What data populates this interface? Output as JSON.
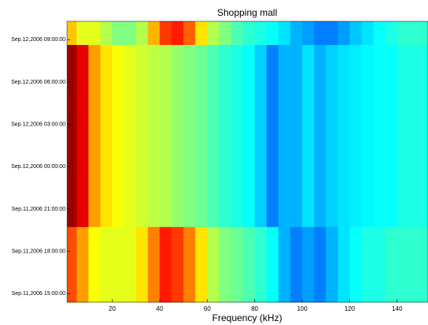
{
  "chart_data": {
    "type": "heatmap",
    "title": "Shopping mall",
    "x_label": "Frequency (kHz)",
    "xlim": [
      1,
      153
    ],
    "xticks": [
      20,
      40,
      60,
      80,
      100,
      120,
      140
    ],
    "ylim": [
      14.4,
      34.3
    ],
    "yticks": [
      {
        "value": 15,
        "label": "Sep.11,2006 15:00:00"
      },
      {
        "value": 18,
        "label": "Sep.11,2006 18:00:00"
      },
      {
        "value": 21,
        "label": "Sep.11,2006 21:00:00"
      },
      {
        "value": 24,
        "label": "Sep.12,2006 00:00:00"
      },
      {
        "value": 27,
        "label": "Sep.12,2006 03:00:00"
      },
      {
        "value": 30,
        "label": "Sep.12,2006 06:00:00"
      },
      {
        "value": 33,
        "label": "Sep.12,2006 09:00:00"
      }
    ],
    "x_edges": [
      1,
      5,
      10,
      15,
      20,
      25,
      30,
      35,
      40,
      45,
      50,
      55,
      60,
      65,
      70,
      75,
      80,
      85,
      90,
      95,
      100,
      105,
      110,
      115,
      120,
      125,
      130,
      135,
      140,
      145,
      150,
      153
    ],
    "y_edges": [
      14.4,
      19.75,
      32.65,
      34.3
    ],
    "colormap": "jet",
    "zlim": [
      0,
      1
    ],
    "z": [
      [
        0.8,
        0.72,
        0.62,
        0.6,
        0.6,
        0.6,
        0.65,
        0.75,
        0.85,
        0.82,
        0.75,
        0.65,
        0.55,
        0.5,
        0.48,
        0.45,
        0.42,
        0.38,
        0.3,
        0.25,
        0.28,
        0.25,
        0.3,
        0.35,
        0.38,
        0.4,
        0.4,
        0.42,
        0.42,
        0.42,
        0.42
      ],
      [
        0.97,
        0.9,
        0.72,
        0.65,
        0.62,
        0.6,
        0.58,
        0.56,
        0.55,
        0.52,
        0.5,
        0.48,
        0.45,
        0.42,
        0.4,
        0.38,
        0.33,
        0.25,
        0.3,
        0.3,
        0.35,
        0.3,
        0.33,
        0.35,
        0.36,
        0.37,
        0.38,
        0.38,
        0.4,
        0.4,
        0.4
      ],
      [
        0.68,
        0.6,
        0.6,
        0.55,
        0.5,
        0.5,
        0.55,
        0.7,
        0.82,
        0.85,
        0.78,
        0.65,
        0.55,
        0.5,
        0.45,
        0.42,
        0.4,
        0.38,
        0.35,
        0.3,
        0.28,
        0.25,
        0.25,
        0.28,
        0.32,
        0.35,
        0.38,
        0.4,
        0.42,
        0.42,
        0.42
      ]
    ]
  }
}
